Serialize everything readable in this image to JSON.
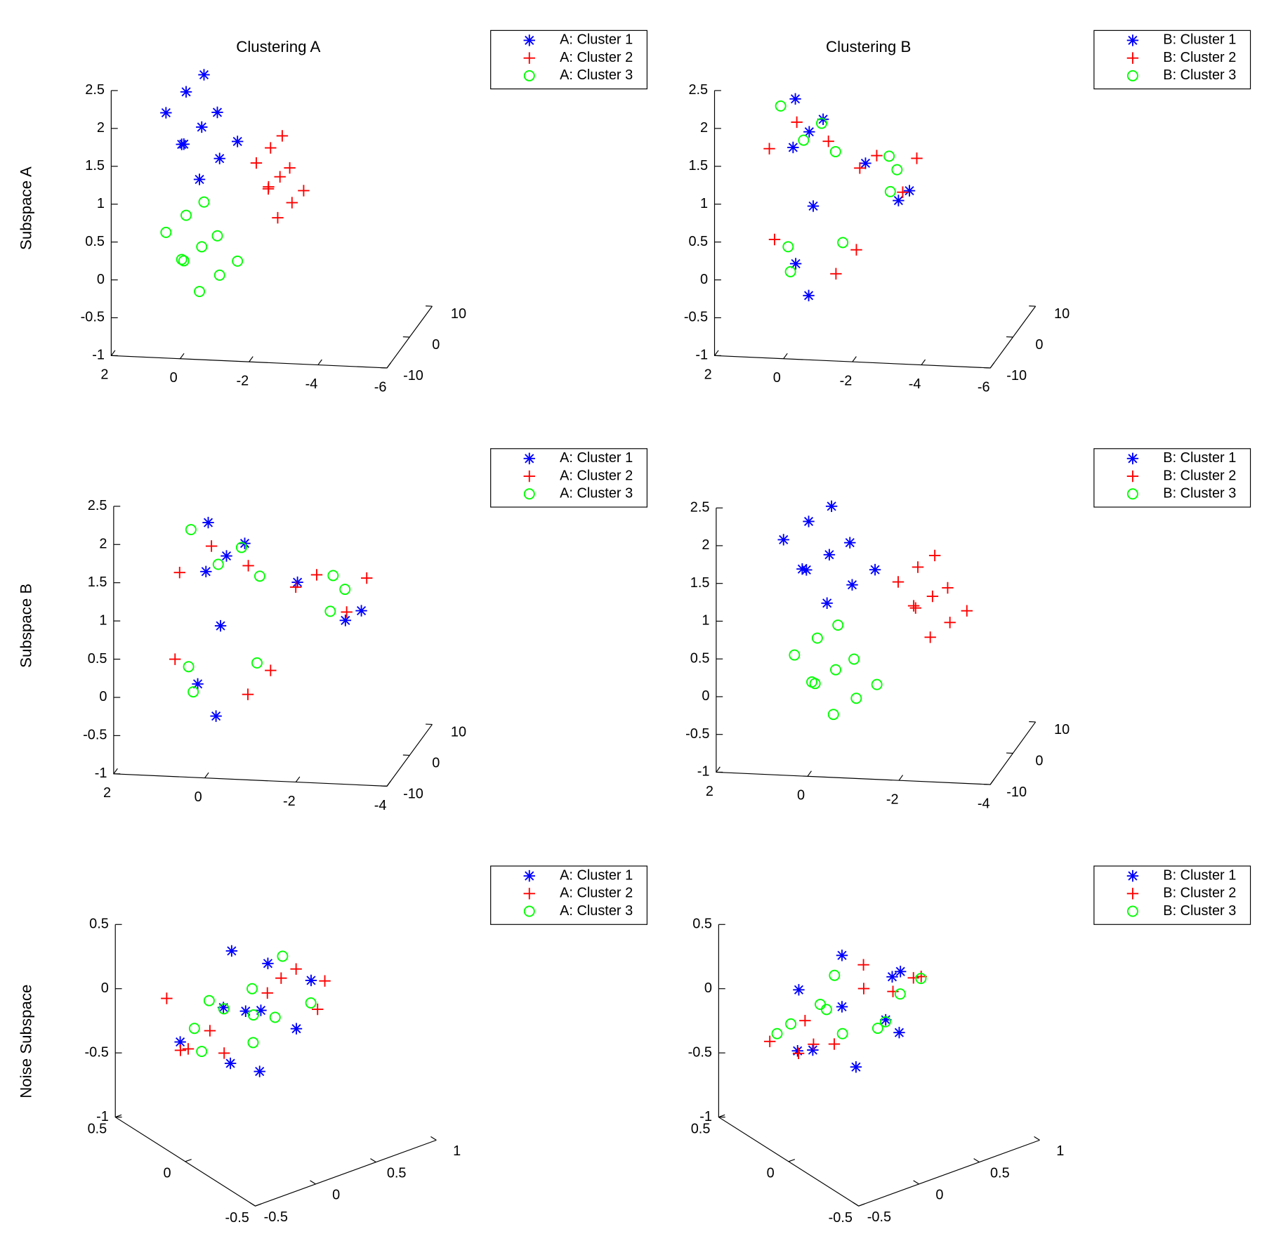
{
  "chart_data": [
    {
      "type": "scatter3d",
      "title": "Clustering A",
      "row_label": "Subspace A",
      "xlim": [
        2,
        -6
      ],
      "xticks": [
        2,
        0,
        -2,
        -4,
        -6
      ],
      "ylim": [
        -10,
        10
      ],
      "yticks": [
        -10,
        0,
        10
      ],
      "zlim": [
        -1,
        2.5
      ],
      "zticks": [
        -1,
        -0.5,
        0,
        0.5,
        1,
        1.5,
        2,
        2.5
      ],
      "series": [
        {
          "name": "A: Cluster 1",
          "color": "#0000ff",
          "marker": "*",
          "x": [
            0.03,
            0.68,
            -0.62,
            0.68,
            -0.62,
            1.33,
            -1.27,
            0.03,
            0.03,
            0.94
          ],
          "y": [
            0,
            3,
            -3,
            2,
            -2,
            4,
            -4,
            1,
            -1,
            5
          ],
          "z": [
            1.65,
            1.98,
            1.98,
            1.33,
            1.33,
            1.65,
            1.65,
            2.3,
            1.0,
            1.2
          ]
        },
        {
          "name": "A: Cluster 2",
          "color": "#ff0000",
          "marker": "+",
          "x": [
            -2.24,
            -1.77,
            -2.72,
            -1.77,
            -2.72,
            -1.29,
            -3.19,
            -2.24,
            -2.24,
            -1.58
          ],
          "y": [
            0,
            3,
            -3,
            2,
            -2,
            4,
            -4,
            1,
            -1,
            5
          ],
          "z": [
            1.04,
            1.29,
            1.29,
            0.79,
            0.79,
            1.04,
            1.04,
            1.54,
            0.54,
            0.69
          ]
        },
        {
          "name": "A: Cluster 3",
          "color": "#00ff00",
          "marker": "o",
          "x": [
            0.03,
            0.68,
            -0.62,
            0.68,
            -0.62,
            1.33,
            -1.27,
            0.03,
            0.03,
            0.94
          ],
          "y": [
            0,
            3,
            -3,
            2,
            -2,
            4,
            -4,
            1,
            -1,
            5
          ],
          "z": [
            0.07,
            0.35,
            0.35,
            -0.21,
            -0.21,
            0.07,
            0.07,
            0.62,
            -0.48,
            -0.32
          ]
        }
      ]
    },
    {
      "type": "scatter3d",
      "title": "Clustering B",
      "xlim": [
        2,
        -6
      ],
      "xticks": [
        2,
        0,
        -2,
        -4,
        -6
      ],
      "ylim": [
        -10,
        10
      ],
      "yticks": [
        -10,
        0,
        10
      ],
      "zlim": [
        -1,
        2.5
      ],
      "zticks": [
        -1,
        -0.5,
        0,
        0.5,
        1,
        1.5,
        2,
        2.5
      ],
      "series": [
        {
          "name": "B: Cluster 1",
          "color": "#0000ff",
          "marker": "*",
          "x": [
            -0.09,
            0.51,
            -0.69,
            0.51,
            -2.81,
            -1.46,
            -3.26,
            -0.14,
            -0.14,
            0.63
          ],
          "y": [
            0,
            3,
            -3,
            2,
            -2,
            4,
            -4,
            1,
            -1,
            5
          ],
          "z": [
            1.59,
            1.89,
            1.89,
            1.29,
            0.82,
            1.04,
            1.04,
            0.57,
            -0.53,
            -0.37
          ]
        },
        {
          "name": "B: Cluster 2",
          "color": "#ff0000",
          "marker": "+",
          "x": [
            0.27,
            -0.45,
            0.87,
            -3.08,
            -2.18,
            -2.54,
            -1.82,
            -0.8,
            0.85,
            -1.13
          ],
          "y": [
            0,
            3,
            -3,
            2,
            -2,
            4,
            -4,
            1,
            -1,
            5
          ],
          "z": [
            1.71,
            1.35,
            1.47,
            1.22,
            1.4,
            0.68,
            1.31,
            -0.31,
            0.19,
            -0.15
          ]
        },
        {
          "name": "B: Cluster 3",
          "color": "#00ff00",
          "marker": "o",
          "x": [
            -0.45,
            0.27,
            -1.05,
            0.87,
            -2.54,
            -2.18,
            -2.9,
            0.52,
            -1.13,
            0.85
          ],
          "y": [
            0,
            3,
            -3,
            2,
            -2,
            4,
            -4,
            1,
            -1,
            5
          ],
          "z": [
            1.71,
            1.35,
            1.47,
            1.83,
            1.4,
            0.68,
            1.31,
            -0.31,
            0.19,
            -0.15
          ]
        }
      ]
    },
    {
      "type": "scatter3d",
      "row_label": "Subspace B",
      "xlim": [
        2,
        -4
      ],
      "xticks": [
        2,
        0,
        -2,
        -4
      ],
      "ylim": [
        -10,
        10
      ],
      "yticks": [
        -10,
        0,
        10
      ],
      "zlim": [
        -1,
        2.5
      ],
      "zticks": [
        -1,
        -0.5,
        0,
        0.5,
        1,
        1.5,
        2,
        2.5
      ],
      "series": [
        {
          "name": "A: Cluster 1",
          "color": "#0000ff",
          "marker": "*",
          "x": [
            0.02,
            0.57,
            -0.53,
            0.57,
            -2.69,
            -1.34,
            -3.14,
            0.2,
            0.2,
            0.9
          ],
          "y": [
            0,
            3,
            -3,
            2,
            -2,
            4,
            -4,
            1,
            -1,
            5
          ],
          "z": [
            1.5,
            1.8,
            1.8,
            1.2,
            0.81,
            1.03,
            1.03,
            0.54,
            -0.56,
            -0.4
          ]
        },
        {
          "name": "A: Cluster 2",
          "color": "#ff0000",
          "marker": "+",
          "x": [
            0.35,
            -0.31,
            0.9,
            -2.96,
            -2.06,
            -2.42,
            -1.7,
            -0.4,
            1.1,
            -0.7
          ],
          "y": [
            0,
            3,
            -3,
            2,
            -2,
            4,
            -4,
            1,
            -1,
            5
          ],
          "z": [
            1.62,
            1.26,
            1.38,
            1.21,
            1.39,
            0.67,
            1.3,
            -0.34,
            0.16,
            -0.18
          ]
        },
        {
          "name": "A: Cluster 3",
          "color": "#00ff00",
          "marker": "o",
          "x": [
            -0.31,
            0.35,
            -0.86,
            0.9,
            -2.42,
            -2.06,
            -2.78,
            0.8,
            -0.7,
            1.1
          ],
          "y": [
            0,
            3,
            -3,
            2,
            -2,
            4,
            -4,
            1,
            -1,
            5
          ],
          "z": [
            1.62,
            1.26,
            1.38,
            1.74,
            1.39,
            0.67,
            1.3,
            -0.34,
            0.16,
            -0.18
          ]
        }
      ]
    },
    {
      "type": "scatter3d",
      "xlim": [
        2,
        -4
      ],
      "xticks": [
        2,
        0,
        -2,
        -4
      ],
      "ylim": [
        -10,
        10
      ],
      "yticks": [
        -10,
        0,
        10
      ],
      "zlim": [
        -1,
        2.5
      ],
      "zticks": [
        -1,
        -0.5,
        0,
        0.5,
        1,
        1.5,
        2,
        2.5
      ],
      "series": [
        {
          "name": "B: Cluster 1",
          "color": "#0000ff",
          "marker": "*",
          "x": [
            0.02,
            0.62,
            -0.58,
            0.62,
            -0.58,
            1.22,
            -1.18,
            0.02,
            0.02,
            0.86
          ],
          "y": [
            0,
            3,
            -3,
            2,
            -2,
            4,
            -4,
            1,
            -1,
            5
          ],
          "z": [
            1.52,
            1.82,
            1.82,
            1.22,
            1.22,
            1.52,
            1.52,
            2.12,
            0.92,
            1.1
          ]
        },
        {
          "name": "B: Cluster 2",
          "color": "#ff0000",
          "marker": "+",
          "x": [
            -2.24,
            -1.77,
            -2.72,
            -1.77,
            -2.72,
            -1.29,
            -3.19,
            -2.24,
            -2.24,
            -1.58
          ],
          "y": [
            0,
            3,
            -3,
            2,
            -2,
            4,
            -4,
            1,
            -1,
            5
          ],
          "z": [
            1.03,
            1.28,
            1.28,
            0.78,
            0.78,
            1.03,
            1.03,
            1.53,
            0.53,
            0.68
          ]
        },
        {
          "name": "B: Cluster 3",
          "color": "#00ff00",
          "marker": "o",
          "x": [
            -0.12,
            0.43,
            -0.67,
            0.43,
            -0.67,
            0.98,
            -1.22,
            -0.12,
            -0.12,
            0.65
          ],
          "y": [
            0,
            3,
            -3,
            2,
            -2,
            4,
            -4,
            1,
            -1,
            5
          ],
          "z": [
            0,
            0.28,
            0.28,
            -0.28,
            -0.28,
            0,
            0,
            0.55,
            -0.55,
            -0.39
          ]
        }
      ]
    },
    {
      "type": "scatter3d",
      "row_label": "Noise Subspace",
      "xlim": [
        0.5,
        -0.5
      ],
      "xticks": [
        0.5,
        0,
        -0.5
      ],
      "ylim": [
        -0.5,
        1
      ],
      "yticks": [
        -0.5,
        0,
        0.5,
        1
      ],
      "zlim": [
        -1,
        0.5
      ],
      "zticks": [
        -1,
        -0.5,
        0,
        0.5
      ],
      "series": [
        {
          "name": "A: Cluster 1",
          "color": "#0000ff",
          "marker": "*",
          "x": [
            0,
            0.1,
            -0.1,
            0.15,
            -0.15,
            0.05,
            -0.05,
            0.1,
            -0.1,
            0
          ],
          "y": [
            0,
            0.3,
            -0.3,
            0.3,
            -0.3,
            0.6,
            -0.6,
            0,
            0,
            0.42
          ],
          "z": [
            0,
            0.2,
            0.2,
            -0.2,
            -0.2,
            0,
            0,
            0.4,
            -0.4,
            -0.28
          ]
        },
        {
          "name": "A: Cluster 2",
          "color": "#ff0000",
          "marker": "+",
          "x": [
            0,
            0.1,
            -0.1,
            0.15,
            -0.15,
            0.05,
            -0.05,
            0.1,
            -0.1,
            0
          ],
          "y": [
            0.18,
            -0.18,
            0.48,
            -0.48,
            0.12,
            -0.12,
            0.36,
            -0.36,
            0.54,
            -0.54
          ],
          "z": [
            0.08,
            -0.16,
            -0.08,
            0.16,
            0.32,
            -0.32,
            0.24,
            -0.24,
            0.12,
            -0.12
          ]
        },
        {
          "name": "A: Cluster 3",
          "color": "#00ff00",
          "marker": "o",
          "x": [
            0,
            0.1,
            -0.1,
            0.15,
            -0.15,
            0.05,
            -0.05,
            0.1,
            -0.1,
            0
          ],
          "y": [
            -0.18,
            0.18,
            -0.48,
            0.48,
            -0.12,
            0.12,
            -0.36,
            0.36,
            -0.54,
            0.54
          ],
          "z": [
            0.08,
            -0.16,
            -0.08,
            0.16,
            0.32,
            -0.32,
            0.24,
            -0.24,
            0.12,
            -0.12
          ]
        }
      ]
    },
    {
      "type": "scatter3d",
      "xlim": [
        0.5,
        -0.5
      ],
      "xticks": [
        0.5,
        0,
        -0.5
      ],
      "ylim": [
        -0.5,
        1
      ],
      "yticks": [
        -0.5,
        0,
        0.5,
        1
      ],
      "zlim": [
        -1,
        0.5
      ],
      "zticks": [
        -1,
        -0.5,
        0,
        0.5
      ],
      "series": [
        {
          "name": "B: Cluster 1",
          "color": "#0000ff",
          "marker": "*",
          "x": [
            0.05,
            -0.05,
            0.1,
            -0.1,
            0,
            0.15,
            -0.15,
            0.05,
            -0.05,
            0.1
          ],
          "y": [
            0,
            0.3,
            -0.3,
            0.3,
            -0.3,
            0.6,
            -0.6,
            0,
            0,
            0.42
          ],
          "z": [
            0,
            0.2,
            0.2,
            -0.2,
            -0.2,
            0,
            0,
            0.4,
            -0.4,
            -0.28
          ]
        },
        {
          "name": "B: Cluster 2",
          "color": "#ff0000",
          "marker": "+",
          "x": [
            0.05,
            -0.05,
            0.1,
            -0.1,
            0,
            0.15,
            -0.15,
            0.05,
            -0.05,
            0.1
          ],
          "y": [
            0.18,
            -0.18,
            0.48,
            -0.48,
            0.12,
            -0.12,
            0.36,
            -0.36,
            0.54,
            -0.54
          ],
          "z": [
            0.08,
            -0.16,
            -0.08,
            0.16,
            0.32,
            -0.32,
            0.24,
            -0.24,
            0.12,
            -0.12
          ]
        },
        {
          "name": "B: Cluster 3",
          "color": "#00ff00",
          "marker": "o",
          "x": [
            0.05,
            -0.05,
            0.1,
            -0.1,
            0,
            0.15,
            -0.15,
            0.05,
            -0.05,
            0.1
          ],
          "y": [
            -0.18,
            0.18,
            -0.48,
            0.48,
            -0.12,
            0.12,
            -0.36,
            0.36,
            -0.54,
            0.54
          ],
          "z": [
            0.08,
            -0.16,
            -0.08,
            0.16,
            0.32,
            -0.32,
            0.24,
            -0.24,
            0.12,
            -0.12
          ]
        }
      ]
    }
  ]
}
